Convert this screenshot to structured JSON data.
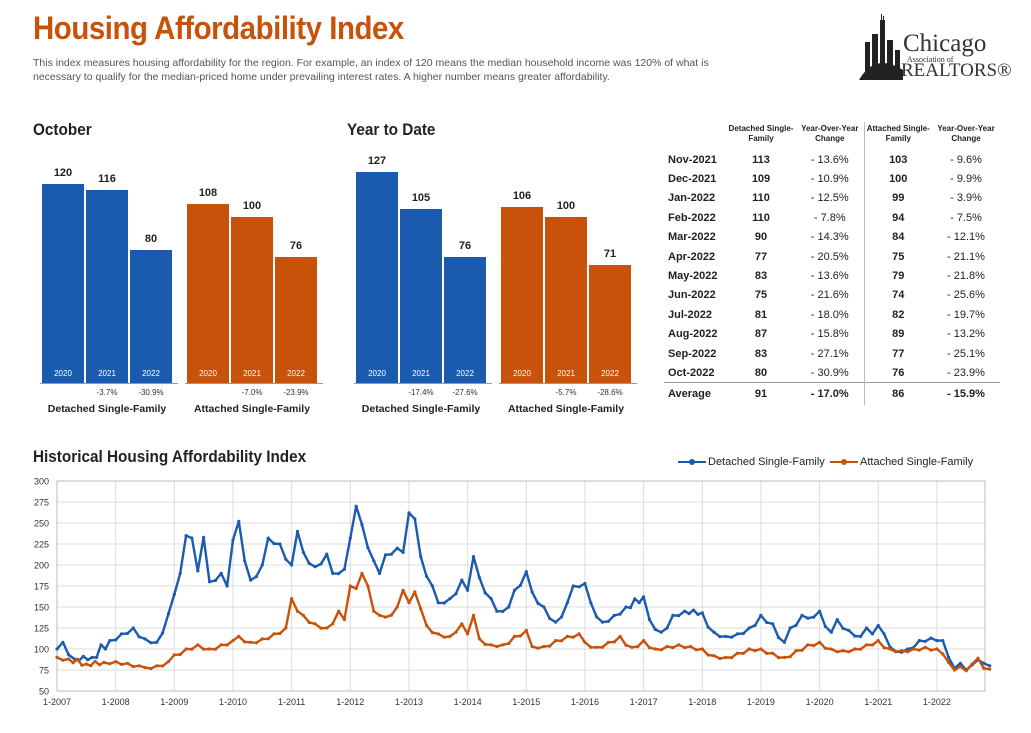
{
  "header": {
    "title": "Housing Affordability Index",
    "subtitle": "This index measures housing affordability for the region. For example, an index of 120 means the median household income was 120% of what is necessary to qualify for the median-priced home under prevailing interest rates. A higher number means greater affordability.",
    "logo": {
      "line1": "Chicago",
      "line2": "Association of",
      "line3": "REALTORS®"
    }
  },
  "colors": {
    "detached": "#1a5bb0",
    "attached": "#c8520a"
  },
  "october": {
    "title": "October",
    "groups": [
      {
        "label": "Detached Single-Family",
        "bars": [
          {
            "year": "2020",
            "value": 120,
            "change": ""
          },
          {
            "year": "2021",
            "value": 116,
            "change": "-3.7%"
          },
          {
            "year": "2022",
            "value": 80,
            "change": "-30.9%"
          }
        ]
      },
      {
        "label": "Attached Single-Family",
        "bars": [
          {
            "year": "2020",
            "value": 108,
            "change": ""
          },
          {
            "year": "2021",
            "value": 100,
            "change": "-7.0%"
          },
          {
            "year": "2022",
            "value": 76,
            "change": "-23.9%"
          }
        ]
      }
    ]
  },
  "ytd": {
    "title": "Year to Date",
    "groups": [
      {
        "label": "Detached Single-Family",
        "bars": [
          {
            "year": "2020",
            "value": 127,
            "change": ""
          },
          {
            "year": "2021",
            "value": 105,
            "change": "-17.4%"
          },
          {
            "year": "2022",
            "value": 76,
            "change": "-27.6%"
          }
        ]
      },
      {
        "label": "Attached Single-Family",
        "bars": [
          {
            "year": "2020",
            "value": 106,
            "change": ""
          },
          {
            "year": "2021",
            "value": 100,
            "change": "-5.7%"
          },
          {
            "year": "2022",
            "value": 71,
            "change": "-28.6%"
          }
        ]
      }
    ]
  },
  "table": {
    "headers": [
      "Detached Single-Family",
      "Year-Over-Year Change",
      "Attached Single-Family",
      "Year-Over-Year Change"
    ],
    "rows": [
      [
        "Nov-2021",
        "113",
        "- 13.6%",
        "103",
        "- 9.6%"
      ],
      [
        "Dec-2021",
        "109",
        "- 10.9%",
        "100",
        "- 9.9%"
      ],
      [
        "Jan-2022",
        "110",
        "- 12.5%",
        "99",
        "- 3.9%"
      ],
      [
        "Feb-2022",
        "110",
        "- 7.8%",
        "94",
        "- 7.5%"
      ],
      [
        "Mar-2022",
        "90",
        "- 14.3%",
        "84",
        "- 12.1%"
      ],
      [
        "Apr-2022",
        "77",
        "- 20.5%",
        "75",
        "- 21.1%"
      ],
      [
        "May-2022",
        "83",
        "- 13.6%",
        "79",
        "- 21.8%"
      ],
      [
        "Jun-2022",
        "75",
        "- 21.6%",
        "74",
        "- 25.6%"
      ],
      [
        "Jul-2022",
        "81",
        "- 18.0%",
        "82",
        "- 19.7%"
      ],
      [
        "Aug-2022",
        "87",
        "- 15.8%",
        "89",
        "- 13.2%"
      ],
      [
        "Sep-2022",
        "83",
        "- 27.1%",
        "77",
        "- 25.1%"
      ],
      [
        "Oct-2022",
        "80",
        "- 30.9%",
        "76",
        "- 23.9%"
      ]
    ],
    "average": [
      "Average",
      "91",
      "- 17.0%",
      "86",
      "- 15.9%"
    ]
  },
  "chart_data": {
    "type": "line",
    "title": "Historical Housing Affordability Index",
    "x_tick_labels": [
      "1-2007",
      "1-2008",
      "1-2009",
      "1-2010",
      "1-2011",
      "1-2012",
      "1-2013",
      "1-2014",
      "1-2015",
      "1-2016",
      "1-2017",
      "1-2018",
      "1-2019",
      "1-2020",
      "1-2021",
      "1-2022"
    ],
    "y_ticks": [
      50,
      75,
      100,
      125,
      150,
      175,
      200,
      225,
      250,
      275,
      300
    ],
    "ylim": [
      50,
      300
    ],
    "x_start": "1-2007",
    "x_end": "10-2022",
    "legend_position": "top-right",
    "series": [
      {
        "name": "Detached Single-Family",
        "color": "#1a5bb0",
        "values_annual_keypoints": [
          [
            2007.0,
            100
          ],
          [
            2007.1,
            108
          ],
          [
            2007.3,
            88
          ],
          [
            2007.6,
            90
          ],
          [
            2007.9,
            110
          ],
          [
            2008.1,
            118
          ],
          [
            2008.3,
            125
          ],
          [
            2008.5,
            112
          ],
          [
            2008.7,
            108
          ],
          [
            2008.9,
            142
          ],
          [
            2009.0,
            165
          ],
          [
            2009.1,
            190
          ],
          [
            2009.2,
            235
          ],
          [
            2009.3,
            232
          ],
          [
            2009.4,
            193
          ],
          [
            2009.5,
            233
          ],
          [
            2009.6,
            180
          ],
          [
            2009.8,
            190
          ],
          [
            2009.9,
            175
          ],
          [
            2010.0,
            230
          ],
          [
            2010.1,
            252
          ],
          [
            2010.2,
            205
          ],
          [
            2010.3,
            182
          ],
          [
            2010.5,
            200
          ],
          [
            2010.6,
            232
          ],
          [
            2010.8,
            225
          ],
          [
            2011.0,
            200
          ],
          [
            2011.1,
            240
          ],
          [
            2011.2,
            215
          ],
          [
            2011.4,
            198
          ],
          [
            2011.6,
            213
          ],
          [
            2011.7,
            190
          ],
          [
            2011.9,
            195
          ],
          [
            2012.0,
            232
          ],
          [
            2012.1,
            270
          ],
          [
            2012.2,
            248
          ],
          [
            2012.4,
            205
          ],
          [
            2012.5,
            190
          ],
          [
            2012.6,
            212
          ],
          [
            2012.8,
            220
          ],
          [
            2012.9,
            215
          ],
          [
            2013.0,
            262
          ],
          [
            2013.1,
            255
          ],
          [
            2013.2,
            210
          ],
          [
            2013.4,
            175
          ],
          [
            2013.5,
            155
          ],
          [
            2013.7,
            160
          ],
          [
            2013.9,
            182
          ],
          [
            2014.0,
            170
          ],
          [
            2014.1,
            210
          ],
          [
            2014.2,
            185
          ],
          [
            2014.4,
            160
          ],
          [
            2014.5,
            145
          ],
          [
            2014.7,
            150
          ],
          [
            2014.8,
            170
          ],
          [
            2015.0,
            192
          ],
          [
            2015.1,
            168
          ],
          [
            2015.3,
            150
          ],
          [
            2015.5,
            132
          ],
          [
            2015.7,
            155
          ],
          [
            2015.8,
            175
          ],
          [
            2016.0,
            178
          ],
          [
            2016.1,
            155
          ],
          [
            2016.3,
            132
          ],
          [
            2016.5,
            140
          ],
          [
            2016.7,
            150
          ],
          [
            2017.0,
            162
          ],
          [
            2017.1,
            135
          ],
          [
            2017.3,
            120
          ],
          [
            2017.5,
            140
          ],
          [
            2017.7,
            145
          ],
          [
            2018.0,
            143
          ],
          [
            2018.2,
            120
          ],
          [
            2018.4,
            115
          ],
          [
            2018.6,
            118
          ],
          [
            2018.8,
            125
          ],
          [
            2019.0,
            140
          ],
          [
            2019.2,
            130
          ],
          [
            2019.4,
            108
          ],
          [
            2019.5,
            125
          ],
          [
            2019.7,
            140
          ],
          [
            2019.9,
            138
          ],
          [
            2020.0,
            145
          ],
          [
            2020.2,
            120
          ],
          [
            2020.3,
            135
          ],
          [
            2020.5,
            122
          ],
          [
            2020.7,
            115
          ],
          [
            2020.8,
            125
          ],
          [
            2020.9,
            118
          ],
          [
            2021.0,
            128
          ],
          [
            2021.1,
            118
          ],
          [
            2021.3,
            97
          ],
          [
            2021.5,
            100
          ],
          [
            2021.7,
            110
          ],
          [
            2021.9,
            113
          ],
          [
            2022.0,
            110
          ],
          [
            2022.1,
            110
          ],
          [
            2022.2,
            90
          ],
          [
            2022.3,
            77
          ],
          [
            2022.4,
            83
          ],
          [
            2022.5,
            75
          ],
          [
            2022.6,
            81
          ],
          [
            2022.7,
            87
          ],
          [
            2022.8,
            83
          ],
          [
            2022.9,
            80
          ]
        ]
      },
      {
        "name": "Attached Single-Family",
        "color": "#c8520a",
        "values_annual_keypoints": [
          [
            2007.0,
            90
          ],
          [
            2007.2,
            88
          ],
          [
            2007.5,
            82
          ],
          [
            2007.8,
            84
          ],
          [
            2008.0,
            85
          ],
          [
            2008.2,
            83
          ],
          [
            2008.4,
            80
          ],
          [
            2008.5,
            78
          ],
          [
            2008.7,
            80
          ],
          [
            2008.9,
            85
          ],
          [
            2009.0,
            93
          ],
          [
            2009.2,
            100
          ],
          [
            2009.4,
            105
          ],
          [
            2009.6,
            100
          ],
          [
            2009.8,
            105
          ],
          [
            2010.0,
            110
          ],
          [
            2010.1,
            115
          ],
          [
            2010.3,
            108
          ],
          [
            2010.5,
            112
          ],
          [
            2010.7,
            118
          ],
          [
            2010.9,
            125
          ],
          [
            2011.0,
            160
          ],
          [
            2011.2,
            140
          ],
          [
            2011.4,
            130
          ],
          [
            2011.6,
            125
          ],
          [
            2011.8,
            145
          ],
          [
            2011.9,
            135
          ],
          [
            2012.0,
            175
          ],
          [
            2012.1,
            172
          ],
          [
            2012.2,
            190
          ],
          [
            2012.3,
            175
          ],
          [
            2012.4,
            145
          ],
          [
            2012.5,
            140
          ],
          [
            2012.6,
            138
          ],
          [
            2012.8,
            150
          ],
          [
            2012.9,
            170
          ],
          [
            2013.0,
            155
          ],
          [
            2013.1,
            168
          ],
          [
            2013.2,
            148
          ],
          [
            2013.3,
            128
          ],
          [
            2013.5,
            118
          ],
          [
            2013.7,
            115
          ],
          [
            2013.8,
            120
          ],
          [
            2013.9,
            130
          ],
          [
            2014.0,
            118
          ],
          [
            2014.1,
            140
          ],
          [
            2014.2,
            112
          ],
          [
            2014.4,
            105
          ],
          [
            2014.6,
            105
          ],
          [
            2014.8,
            115
          ],
          [
            2015.0,
            122
          ],
          [
            2015.1,
            103
          ],
          [
            2015.3,
            103
          ],
          [
            2015.5,
            110
          ],
          [
            2015.7,
            115
          ],
          [
            2015.9,
            118
          ],
          [
            2016.0,
            108
          ],
          [
            2016.2,
            102
          ],
          [
            2016.4,
            108
          ],
          [
            2016.6,
            115
          ],
          [
            2016.8,
            102
          ],
          [
            2017.0,
            110
          ],
          [
            2017.2,
            100
          ],
          [
            2017.4,
            103
          ],
          [
            2017.6,
            105
          ],
          [
            2017.8,
            103
          ],
          [
            2018.0,
            100
          ],
          [
            2018.2,
            92
          ],
          [
            2018.4,
            90
          ],
          [
            2018.6,
            95
          ],
          [
            2018.8,
            100
          ],
          [
            2019.0,
            100
          ],
          [
            2019.2,
            95
          ],
          [
            2019.4,
            90
          ],
          [
            2019.6,
            98
          ],
          [
            2019.8,
            105
          ],
          [
            2020.0,
            108
          ],
          [
            2020.2,
            100
          ],
          [
            2020.4,
            98
          ],
          [
            2020.6,
            100
          ],
          [
            2020.8,
            105
          ],
          [
            2021.0,
            110
          ],
          [
            2021.2,
            100
          ],
          [
            2021.4,
            98
          ],
          [
            2021.6,
            100
          ],
          [
            2021.8,
            102
          ],
          [
            2022.0,
            100
          ],
          [
            2022.1,
            94
          ],
          [
            2022.2,
            84
          ],
          [
            2022.3,
            75
          ],
          [
            2022.4,
            79
          ],
          [
            2022.5,
            74
          ],
          [
            2022.6,
            82
          ],
          [
            2022.7,
            89
          ],
          [
            2022.8,
            77
          ],
          [
            2022.9,
            76
          ]
        ]
      }
    ]
  }
}
